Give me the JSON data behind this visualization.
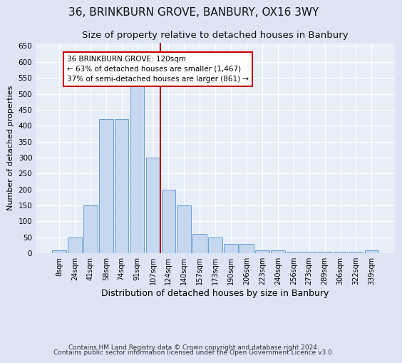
{
  "title": "36, BRINKBURN GROVE, BANBURY, OX16 3WY",
  "subtitle": "Size of property relative to detached houses in Banbury",
  "xlabel": "Distribution of detached houses by size in Banbury",
  "ylabel": "Number of detached properties",
  "categories": [
    "8sqm",
    "24sqm",
    "41sqm",
    "58sqm",
    "74sqm",
    "91sqm",
    "107sqm",
    "124sqm",
    "140sqm",
    "157sqm",
    "173sqm",
    "190sqm",
    "206sqm",
    "223sqm",
    "240sqm",
    "256sqm",
    "273sqm",
    "289sqm",
    "306sqm",
    "322sqm",
    "339sqm"
  ],
  "values": [
    8,
    50,
    150,
    420,
    420,
    530,
    300,
    200,
    150,
    60,
    50,
    30,
    30,
    10,
    10,
    5,
    5,
    5,
    5,
    5,
    10
  ],
  "bar_color": "#c5d8f0",
  "bar_edge_color": "#6a9fd0",
  "vline_color": "#aa0000",
  "annotation_text": "36 BRINKBURN GROVE: 120sqm\n← 63% of detached houses are smaller (1,467)\n37% of semi-detached houses are larger (861) →",
  "annotation_box_color": "#ffffff",
  "annotation_box_edge_color": "#cc0000",
  "ylim": [
    0,
    660
  ],
  "yticks": [
    0,
    50,
    100,
    150,
    200,
    250,
    300,
    350,
    400,
    450,
    500,
    550,
    600,
    650
  ],
  "bg_color": "#dde5f5",
  "plot_bg_color": "#e8eef8",
  "footer1": "Contains HM Land Registry data © Crown copyright and database right 2024.",
  "footer2": "Contains public sector information licensed under the Open Government Licence v3.0.",
  "title_fontsize": 11,
  "subtitle_fontsize": 9.5,
  "xlabel_fontsize": 9,
  "ylabel_fontsize": 8,
  "footer_fontsize": 6.5,
  "vline_x_index": 7
}
